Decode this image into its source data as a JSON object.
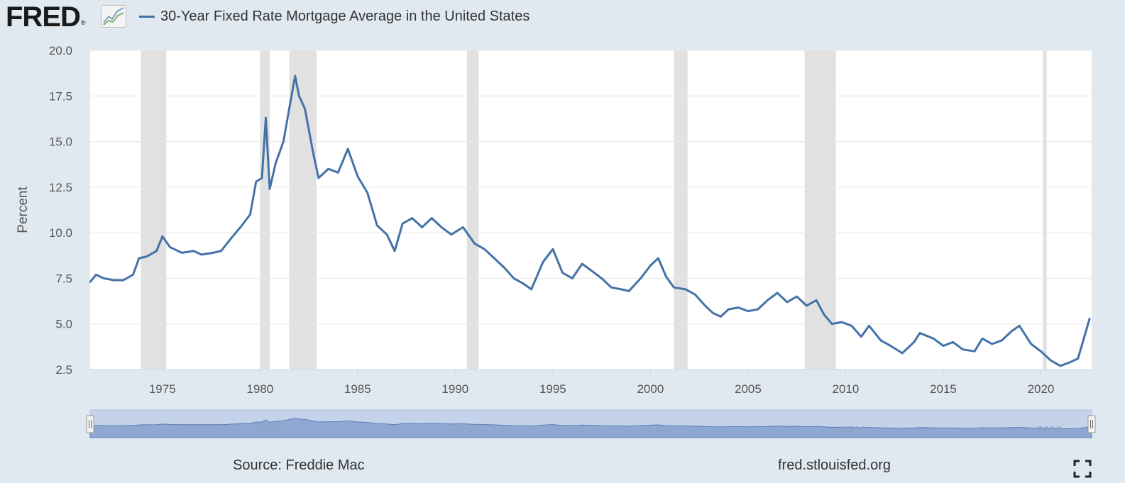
{
  "header": {
    "logo_text": "FRED",
    "logo_reg": "®",
    "series_title": "30-Year Fixed Rate Mortgage Average in the United States"
  },
  "footer": {
    "source": "Source: Freddie Mac",
    "url": "fred.stlouisfed.org"
  },
  "colors": {
    "series": "#4572a7",
    "recession": "#e1e1e1",
    "background": "#e1e9f0",
    "navigator_fill": "#8fa8d2"
  },
  "chart_data": {
    "type": "line",
    "title": "30-Year Fixed Rate Mortgage Average in the United States",
    "xlabel": "",
    "ylabel": "Percent",
    "xlim": [
      1971.3,
      2022.6
    ],
    "ylim": [
      2.5,
      20.0
    ],
    "yticks": [
      "2.5",
      "5.0",
      "7.5",
      "10.0",
      "12.5",
      "15.0",
      "17.5",
      "20.0"
    ],
    "xticks": [
      "1975",
      "1980",
      "1985",
      "1990",
      "1995",
      "2000",
      "2005",
      "2010",
      "2015",
      "2020"
    ],
    "navigator_labels": [
      "1980",
      "1990",
      "2000",
      "2010",
      "2020"
    ],
    "grid": true,
    "recessions": [
      [
        1973.9,
        1975.2
      ],
      [
        1980.0,
        1980.5
      ],
      [
        1981.5,
        1982.9
      ],
      [
        1990.6,
        1991.2
      ],
      [
        2001.2,
        2001.9
      ],
      [
        2007.9,
        2009.5
      ],
      [
        2020.1,
        2020.3
      ]
    ],
    "series": [
      {
        "name": "30-Year Fixed Rate Mortgage Average in the United States",
        "x": [
          1971.3,
          1971.6,
          1972.0,
          1972.5,
          1973.0,
          1973.5,
          1973.8,
          1974.2,
          1974.7,
          1975.0,
          1975.4,
          1976.0,
          1976.6,
          1977.0,
          1977.6,
          1978.0,
          1978.6,
          1979.0,
          1979.5,
          1979.8,
          1980.1,
          1980.3,
          1980.5,
          1980.8,
          1981.2,
          1981.5,
          1981.8,
          1982.0,
          1982.3,
          1982.7,
          1983.0,
          1983.5,
          1984.0,
          1984.5,
          1985.0,
          1985.5,
          1986.0,
          1986.5,
          1986.9,
          1987.3,
          1987.8,
          1988.3,
          1988.8,
          1989.3,
          1989.8,
          1990.4,
          1991.0,
          1991.5,
          1992.0,
          1992.5,
          1993.0,
          1993.5,
          1993.9,
          1994.5,
          1995.0,
          1995.5,
          1996.0,
          1996.5,
          1997.0,
          1997.5,
          1998.0,
          1998.5,
          1998.9,
          1999.5,
          2000.0,
          2000.4,
          2000.8,
          2001.2,
          2001.8,
          2002.3,
          2002.8,
          2003.2,
          2003.6,
          2004.0,
          2004.5,
          2005.0,
          2005.5,
          2006.0,
          2006.5,
          2007.0,
          2007.5,
          2008.0,
          2008.5,
          2008.9,
          2009.3,
          2009.8,
          2010.3,
          2010.8,
          2011.2,
          2011.8,
          2012.3,
          2012.9,
          2013.5,
          2013.8,
          2014.5,
          2015.0,
          2015.5,
          2016.0,
          2016.6,
          2017.0,
          2017.5,
          2018.0,
          2018.5,
          2018.9,
          2019.5,
          2020.0,
          2020.5,
          2021.0,
          2021.5,
          2021.9,
          2022.2,
          2022.5
        ],
        "values": [
          7.3,
          7.7,
          7.5,
          7.4,
          7.4,
          7.7,
          8.6,
          8.7,
          9.0,
          9.8,
          9.2,
          8.9,
          9.0,
          8.8,
          8.9,
          9.0,
          9.8,
          10.3,
          11.0,
          12.8,
          13.0,
          16.3,
          12.4,
          13.8,
          15.0,
          16.8,
          18.6,
          17.5,
          16.8,
          14.5,
          13.0,
          13.5,
          13.3,
          14.6,
          13.1,
          12.2,
          10.4,
          9.9,
          9.0,
          10.5,
          10.8,
          10.3,
          10.8,
          10.3,
          9.9,
          10.3,
          9.4,
          9.1,
          8.6,
          8.1,
          7.5,
          7.2,
          6.9,
          8.4,
          9.1,
          7.8,
          7.5,
          8.3,
          7.9,
          7.5,
          7.0,
          6.9,
          6.8,
          7.5,
          8.2,
          8.6,
          7.6,
          7.0,
          6.9,
          6.6,
          6.0,
          5.6,
          5.4,
          5.8,
          5.9,
          5.7,
          5.8,
          6.3,
          6.7,
          6.2,
          6.5,
          6.0,
          6.3,
          5.5,
          5.0,
          5.1,
          4.9,
          4.3,
          4.9,
          4.1,
          3.8,
          3.4,
          4.0,
          4.5,
          4.2,
          3.8,
          4.0,
          3.6,
          3.5,
          4.2,
          3.9,
          4.1,
          4.6,
          4.9,
          3.9,
          3.5,
          3.0,
          2.7,
          2.9,
          3.1,
          4.2,
          5.3
        ]
      }
    ]
  }
}
